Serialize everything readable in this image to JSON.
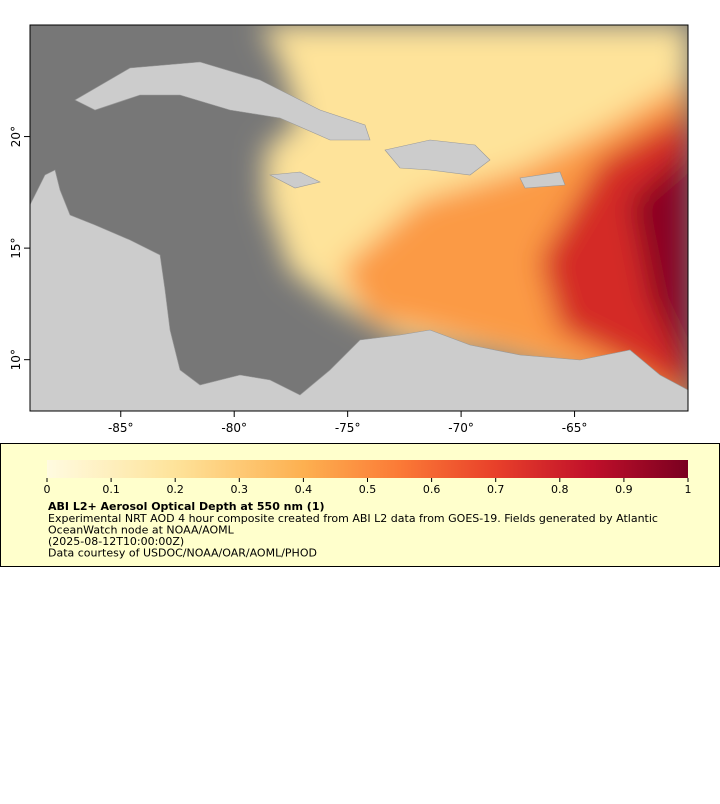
{
  "chart_data": {
    "type": "map",
    "xlim": [
      -89,
      -60
    ],
    "ylim": [
      7.7,
      25
    ],
    "xticks": [
      {
        "value": -85,
        "label": "-85°"
      },
      {
        "value": -80,
        "label": "-80°"
      },
      {
        "value": -75,
        "label": "-75°"
      },
      {
        "value": -70,
        "label": "-70°"
      },
      {
        "value": -65,
        "label": "-65°"
      }
    ],
    "yticks": [
      {
        "value": 10,
        "label": "10°"
      },
      {
        "value": 15,
        "label": "15°"
      },
      {
        "value": 20,
        "label": "20°"
      }
    ],
    "colorbar": {
      "clim": [
        0,
        1
      ],
      "ticks": [
        0,
        0.1,
        0.2,
        0.3,
        0.4,
        0.5,
        0.6,
        0.7,
        0.8,
        0.9,
        1
      ]
    },
    "title": "ABI L2+ Aerosol Optical Depth at 550 nm (1)",
    "description": [
      "Experimental NRT AOD 4 hour composite created from ABI L2 data from GOES-19. Fields generated by Atlantic",
      "OceanWatch node at NOAA/AOML",
      "(2025-08-12T10:00:00Z)",
      "Data courtesy of USDOC/NOAA/OAR/AOML/PHOD"
    ]
  }
}
